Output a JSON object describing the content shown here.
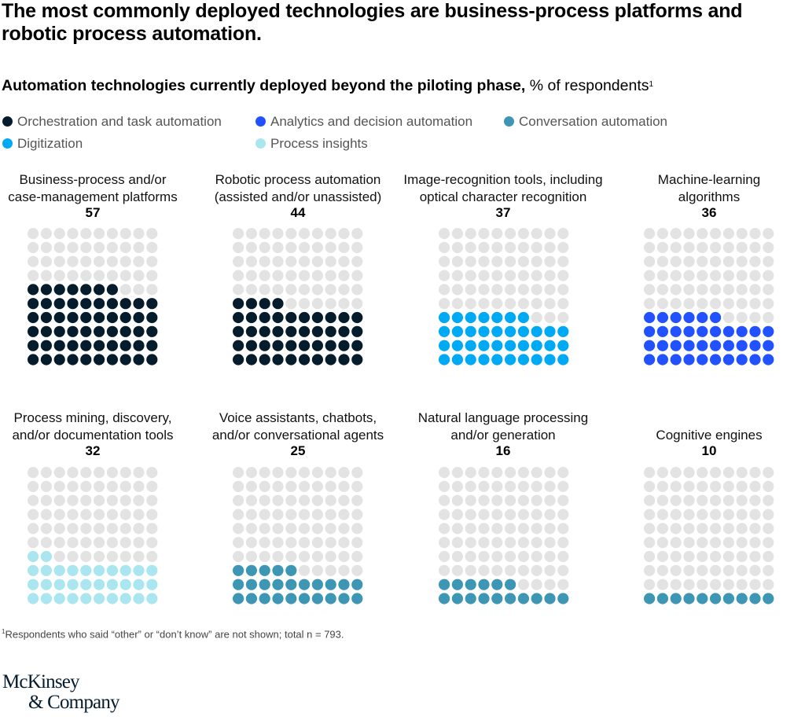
{
  "title": "The most commonly deployed technologies are business-process platforms and robotic process automation.",
  "subtitle": {
    "bold": "Automation technologies currently deployed beyond the piloting phase,",
    "regular": " % of respondents",
    "footnote_marker": "1"
  },
  "colors": {
    "empty": "#e3e3e3",
    "orchestration": "#051c2c",
    "analytics": "#2251ff",
    "conversation": "#3c96b4",
    "digitization": "#00a9f4",
    "insights": "#aae6f0"
  },
  "legend": [
    {
      "key": "orchestration",
      "label": "Orchestration and task automation",
      "color": "#051c2c"
    },
    {
      "key": "analytics",
      "label": "Analytics and decision automation",
      "color": "#2251ff"
    },
    {
      "key": "conversation",
      "label": "Conversation automation",
      "color": "#3c96b4"
    },
    {
      "key": "digitization",
      "label": "Digitization",
      "color": "#00a9f4"
    },
    {
      "key": "insights",
      "label": "Process insights",
      "color": "#aae6f0"
    }
  ],
  "chart_data": {
    "type": "waffle",
    "title": "Automation technologies currently deployed beyond the piloting phase",
    "unit": "% of respondents",
    "grid": "10x10 dots, each dot = 1%",
    "legend_placement": "top-left",
    "categories": [
      {
        "label_lines": [
          "Business-process and/or",
          "case-management platforms"
        ],
        "value": 57,
        "series": "Orchestration and task automation"
      },
      {
        "label_lines": [
          "Robotic process automation",
          "(assisted and/or unassisted)"
        ],
        "value": 44,
        "series": "Orchestration and task automation"
      },
      {
        "label_lines": [
          "Image-recognition tools, including",
          "optical character recognition"
        ],
        "value": 37,
        "series": "Digitization"
      },
      {
        "label_lines": [
          "Machine-learning",
          "algorithms"
        ],
        "value": 36,
        "series": "Analytics and decision automation"
      },
      {
        "label_lines": [
          "Process mining, discovery,",
          "and/or documentation tools"
        ],
        "value": 32,
        "series": "Process insights"
      },
      {
        "label_lines": [
          "Voice assistants, chatbots,",
          "and/or conversational agents"
        ],
        "value": 25,
        "series": "Conversation automation"
      },
      {
        "label_lines": [
          "Natural language processing",
          "and/or generation"
        ],
        "value": 16,
        "series": "Conversation automation"
      },
      {
        "label_lines": [
          "",
          "Cognitive engines"
        ],
        "value": 10,
        "series": "Conversation automation"
      }
    ]
  },
  "panel_colors": [
    "#051c2c",
    "#051c2c",
    "#00a9f4",
    "#2251ff",
    "#aae6f0",
    "#3c96b4",
    "#3c96b4",
    "#3c96b4"
  ],
  "footnote": {
    "marker": "1",
    "text": "Respondents who said “other” or “don’t know” are not shown; total n = 793."
  },
  "logo": {
    "line1": "McKinsey",
    "line2": "& Company"
  }
}
